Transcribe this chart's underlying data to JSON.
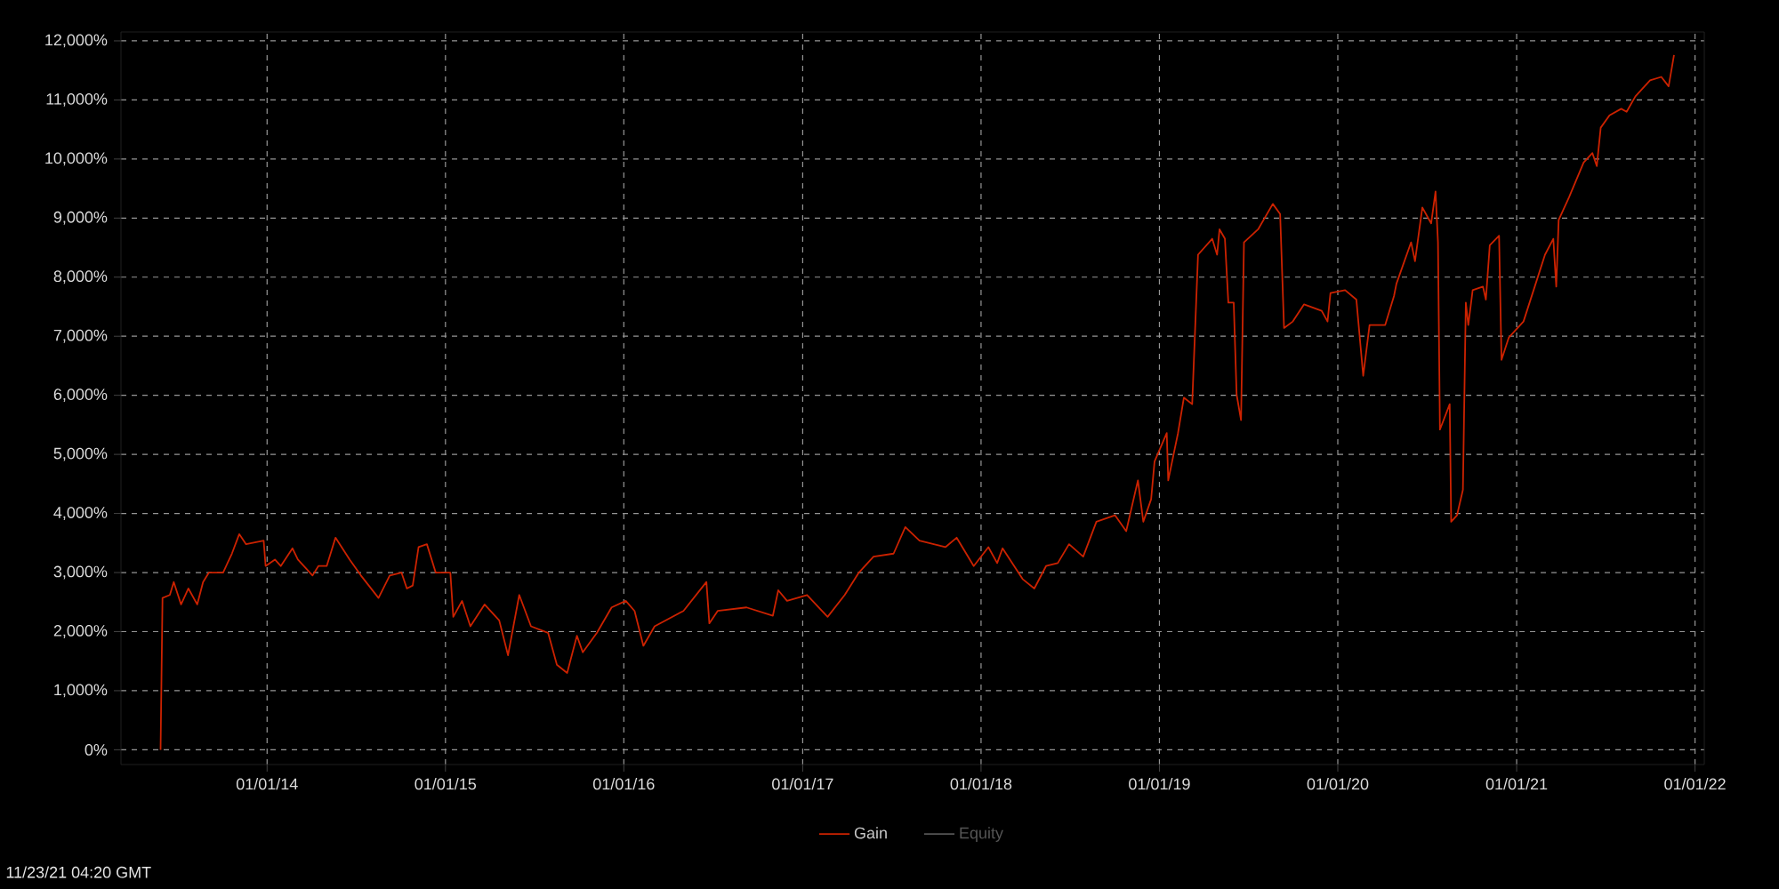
{
  "chart_data": {
    "type": "line",
    "x": [
      "2013-05-28",
      "2013-06-01",
      "2013-06-16",
      "2013-06-24",
      "2013-07-09",
      "2013-07-24",
      "2013-08-11",
      "2013-08-23",
      "2013-09-04",
      "2013-10-03",
      "2013-10-21",
      "2013-11-05",
      "2013-11-19",
      "2013-12-25",
      "2013-12-29",
      "2014-01-17",
      "2014-01-29",
      "2014-02-22",
      "2014-03-05",
      "2014-04-04",
      "2014-04-16",
      "2014-05-03",
      "2014-05-21",
      "2014-06-19",
      "2014-07-12",
      "2014-08-17",
      "2014-09-09",
      "2014-10-03",
      "2014-10-14",
      "2014-10-26",
      "2014-11-07",
      "2014-11-24",
      "2014-12-12",
      "2015-01-11",
      "2015-01-17",
      "2015-02-04",
      "2015-02-21",
      "2015-03-22",
      "2015-04-21",
      "2015-05-09",
      "2015-06-01",
      "2015-06-25",
      "2015-07-30",
      "2015-08-17",
      "2015-09-07",
      "2015-09-27",
      "2015-10-09",
      "2015-11-07",
      "2015-12-07",
      "2016-01-05",
      "2016-01-23",
      "2016-02-10",
      "2016-03-04",
      "2016-05-02",
      "2016-06-18",
      "2016-06-24",
      "2016-07-11",
      "2016-09-08",
      "2016-11-01",
      "2016-11-12",
      "2016-11-30",
      "2017-01-10",
      "2017-02-21",
      "2017-03-28",
      "2017-04-26",
      "2017-05-26",
      "2017-07-06",
      "2017-07-30",
      "2017-08-28",
      "2017-10-20",
      "2017-11-12",
      "2017-12-17",
      "2018-01-16",
      "2018-02-03",
      "2018-02-14",
      "2018-03-27",
      "2018-04-20",
      "2018-05-14",
      "2018-06-07",
      "2018-06-30",
      "2018-07-29",
      "2018-08-25",
      "2018-10-02",
      "2018-10-25",
      "2018-11-18",
      "2018-11-29",
      "2018-12-15",
      "2018-12-22",
      "2019-01-16",
      "2019-01-19",
      "2019-02-08",
      "2019-02-20",
      "2019-03-09",
      "2019-03-21",
      "2019-04-19",
      "2019-04-29",
      "2019-05-04",
      "2019-05-15",
      "2019-05-22",
      "2019-06-02",
      "2019-06-08",
      "2019-06-17",
      "2019-06-23",
      "2019-07-22",
      "2019-08-21",
      "2019-09-05",
      "2019-09-13",
      "2019-10-01",
      "2019-10-24",
      "2019-11-29",
      "2019-12-11",
      "2019-12-17",
      "2020-01-16",
      "2020-02-08",
      "2020-02-22",
      "2020-03-06",
      "2020-04-07",
      "2020-04-25",
      "2020-04-30",
      "2020-05-30",
      "2020-06-07",
      "2020-06-22",
      "2020-07-10",
      "2020-07-19",
      "2020-07-24",
      "2020-07-28",
      "2020-08-17",
      "2020-08-20",
      "2020-09-01",
      "2020-09-13",
      "2020-09-19",
      "2020-09-24",
      "2020-10-03",
      "2020-10-24",
      "2020-10-30",
      "2020-11-07",
      "2020-11-26",
      "2020-12-01",
      "2020-12-16",
      "2021-01-15",
      "2021-02-07",
      "2021-02-28",
      "2021-03-17",
      "2021-03-23",
      "2021-03-28",
      "2021-04-18",
      "2021-05-18",
      "2021-06-05",
      "2021-06-14",
      "2021-06-22",
      "2021-07-10",
      "2021-08-03",
      "2021-08-14",
      "2021-09-01",
      "2021-10-01",
      "2021-10-24",
      "2021-11-08",
      "2021-11-19"
    ],
    "series": [
      {
        "name": "Gain",
        "color": "#cc2200",
        "values": [
          0,
          2570,
          2620,
          2840,
          2460,
          2730,
          2460,
          2840,
          3000,
          3000,
          3320,
          3650,
          3480,
          3540,
          3110,
          3220,
          3110,
          3410,
          3220,
          2950,
          3110,
          3110,
          3590,
          3220,
          2950,
          2570,
          2950,
          3000,
          2730,
          2780,
          3430,
          3480,
          3000,
          3000,
          2250,
          2520,
          2090,
          2460,
          2190,
          1600,
          2620,
          2090,
          1980,
          1440,
          1300,
          1930,
          1650,
          1980,
          2410,
          2520,
          2350,
          1760,
          2090,
          2350,
          2840,
          2140,
          2350,
          2410,
          2270,
          2700,
          2520,
          2620,
          2250,
          2620,
          3000,
          3270,
          3320,
          3770,
          3540,
          3430,
          3590,
          3110,
          3430,
          3160,
          3410,
          2890,
          2730,
          3110,
          3160,
          3480,
          3270,
          3860,
          3970,
          3700,
          4560,
          3860,
          4240,
          4880,
          5360,
          4560,
          5360,
          5960,
          5850,
          8380,
          8650,
          8380,
          8810,
          8650,
          7570,
          7570,
          6010,
          5580,
          8590,
          8810,
          9240,
          9070,
          7140,
          7250,
          7540,
          7430,
          7250,
          7730,
          7780,
          7620,
          6330,
          7190,
          7190,
          7680,
          7890,
          8590,
          8270,
          9180,
          8910,
          9450,
          8590,
          5420,
          5850,
          3860,
          3970,
          4400,
          7570,
          7190,
          7780,
          7840,
          7620,
          8540,
          8700,
          6600,
          6980,
          7250,
          7840,
          8380,
          8650,
          7840,
          8970,
          9350,
          9940,
          10100,
          9880,
          10530,
          10740,
          10850,
          10800,
          11060,
          11330,
          11390,
          11230,
          11760
        ]
      },
      {
        "name": "Equity",
        "color": "#555555",
        "values": [
          null,
          null,
          null,
          null,
          null,
          null,
          null,
          null,
          null,
          null,
          null,
          null,
          null,
          null,
          null,
          null,
          null,
          null,
          null,
          null,
          null,
          null,
          null,
          null,
          null,
          null,
          null,
          null,
          null,
          null,
          null,
          null,
          null,
          null,
          null,
          null,
          null,
          null,
          null,
          null,
          null,
          null,
          null,
          null,
          null,
          null,
          null,
          null,
          null,
          null,
          null,
          null,
          null,
          null,
          null,
          null,
          null,
          null,
          null,
          null,
          null,
          null,
          null,
          null,
          null,
          null,
          null,
          null,
          null,
          null,
          null,
          null,
          null,
          null,
          null,
          null,
          null,
          null,
          null,
          null,
          null,
          null,
          null,
          null,
          null,
          null,
          null,
          null,
          null,
          null,
          null,
          null,
          null,
          null,
          null,
          null,
          null,
          null,
          null,
          null,
          null,
          null,
          null,
          null,
          null,
          null,
          null,
          null,
          null,
          null,
          null,
          null,
          null,
          null,
          null,
          null,
          null,
          null,
          null,
          null,
          null,
          null,
          null,
          null,
          null,
          null,
          null,
          null,
          null,
          null,
          null,
          null,
          null,
          null,
          null,
          null,
          null,
          null,
          null,
          null,
          null,
          null,
          null,
          null,
          null,
          null,
          null,
          null,
          null,
          null,
          null,
          null,
          null,
          null,
          null,
          null,
          null,
          null
        ]
      }
    ],
    "xlim": [
      "2013-03-08",
      "2022-01-20"
    ],
    "xticks": [
      {
        "value": "2014-01-01",
        "label": "01/01/14"
      },
      {
        "value": "2015-01-01",
        "label": "01/01/15"
      },
      {
        "value": "2016-01-01",
        "label": "01/01/16"
      },
      {
        "value": "2017-01-01",
        "label": "01/01/17"
      },
      {
        "value": "2018-01-01",
        "label": "01/01/18"
      },
      {
        "value": "2019-01-01",
        "label": "01/01/19"
      },
      {
        "value": "2020-01-01",
        "label": "01/01/20"
      },
      {
        "value": "2021-01-01",
        "label": "01/01/21"
      },
      {
        "value": "2022-01-01",
        "label": "01/01/22"
      }
    ],
    "ylim": [
      -250,
      12150
    ],
    "yticks": [
      {
        "value": 0,
        "label": "0%"
      },
      {
        "value": 1000,
        "label": "1,000%"
      },
      {
        "value": 2000,
        "label": "2,000%"
      },
      {
        "value": 3000,
        "label": "3,000%"
      },
      {
        "value": 4000,
        "label": "4,000%"
      },
      {
        "value": 5000,
        "label": "5,000%"
      },
      {
        "value": 6000,
        "label": "6,000%"
      },
      {
        "value": 7000,
        "label": "7,000%"
      },
      {
        "value": 8000,
        "label": "8,000%"
      },
      {
        "value": 9000,
        "label": "9,000%"
      },
      {
        "value": 10000,
        "label": "10,000%"
      },
      {
        "value": 11000,
        "label": "11,000%"
      },
      {
        "value": 12000,
        "label": "12,000%"
      }
    ],
    "grid": true,
    "legend": "bottom",
    "annotations": [
      "11/23/21 04:20 GMT"
    ]
  }
}
